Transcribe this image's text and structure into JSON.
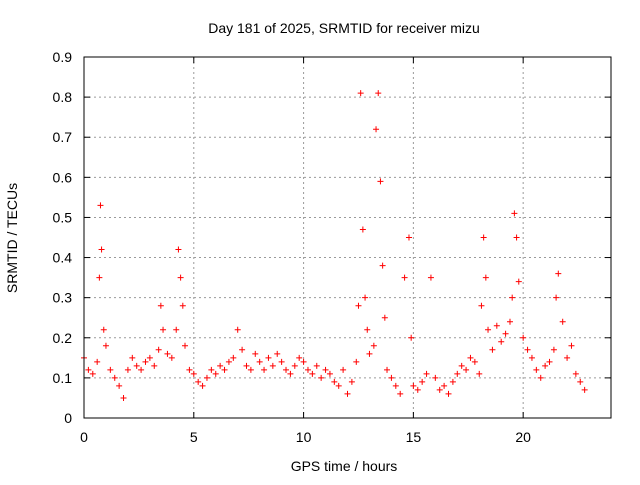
{
  "chart_data": {
    "type": "scatter",
    "title": "Day 181 of 2025, SRMTID for receiver mizu",
    "xlabel": "GPS time / hours",
    "ylabel": "SRMTID / TECUs",
    "xlim": [
      0,
      24
    ],
    "ylim": [
      0,
      0.9
    ],
    "x_ticks": [
      0,
      5,
      10,
      15,
      20
    ],
    "x_tick_labels": [
      "0",
      "5",
      "10",
      "15",
      "20"
    ],
    "y_ticks": [
      0,
      0.1,
      0.2,
      0.3,
      0.4,
      0.5,
      0.6,
      0.7,
      0.8,
      0.9
    ],
    "y_tick_labels": [
      "0",
      "0.1",
      "0.2",
      "0.3",
      "0.4",
      "0.5",
      "0.6",
      "0.7",
      "0.8",
      "0.9"
    ],
    "grid": true,
    "marker": "plus",
    "color": "#ff0000",
    "series": [
      {
        "name": "SRMTID",
        "x": [
          0.0,
          0.2,
          0.4,
          0.6,
          0.7,
          0.75,
          0.8,
          0.9,
          1.0,
          1.2,
          1.4,
          1.6,
          1.8,
          2.0,
          2.2,
          2.4,
          2.6,
          2.8,
          3.0,
          3.2,
          3.4,
          3.5,
          3.6,
          3.8,
          4.0,
          4.2,
          4.3,
          4.4,
          4.5,
          4.6,
          4.8,
          5.0,
          5.2,
          5.4,
          5.6,
          5.8,
          6.0,
          6.2,
          6.4,
          6.6,
          6.8,
          7.0,
          7.2,
          7.4,
          7.6,
          7.8,
          8.0,
          8.2,
          8.4,
          8.6,
          8.8,
          9.0,
          9.2,
          9.4,
          9.6,
          9.8,
          10.0,
          10.2,
          10.4,
          10.6,
          10.8,
          11.0,
          11.2,
          11.4,
          11.6,
          11.8,
          12.0,
          12.2,
          12.4,
          12.5,
          12.6,
          12.7,
          12.8,
          12.9,
          13.0,
          13.2,
          13.3,
          13.4,
          13.5,
          13.6,
          13.7,
          13.8,
          14.0,
          14.2,
          14.4,
          14.6,
          14.8,
          14.9,
          15.0,
          15.2,
          15.4,
          15.6,
          15.8,
          16.0,
          16.2,
          16.4,
          16.6,
          16.8,
          17.0,
          17.2,
          17.4,
          17.6,
          17.8,
          18.0,
          18.1,
          18.2,
          18.3,
          18.4,
          18.6,
          18.8,
          19.0,
          19.2,
          19.4,
          19.5,
          19.6,
          19.7,
          19.8,
          20.0,
          20.2,
          20.4,
          20.6,
          20.8,
          21.0,
          21.2,
          21.4,
          21.5,
          21.6,
          21.8,
          22.0,
          22.2,
          22.4,
          22.6,
          22.8
        ],
        "y": [
          0.15,
          0.12,
          0.11,
          0.14,
          0.35,
          0.53,
          0.42,
          0.22,
          0.18,
          0.12,
          0.1,
          0.08,
          0.05,
          0.12,
          0.15,
          0.13,
          0.12,
          0.14,
          0.15,
          0.13,
          0.17,
          0.28,
          0.22,
          0.16,
          0.15,
          0.22,
          0.42,
          0.35,
          0.28,
          0.18,
          0.12,
          0.11,
          0.09,
          0.08,
          0.1,
          0.12,
          0.11,
          0.13,
          0.12,
          0.14,
          0.15,
          0.22,
          0.17,
          0.13,
          0.12,
          0.16,
          0.14,
          0.12,
          0.15,
          0.13,
          0.16,
          0.14,
          0.12,
          0.11,
          0.13,
          0.15,
          0.14,
          0.12,
          0.11,
          0.13,
          0.1,
          0.12,
          0.11,
          0.09,
          0.08,
          0.12,
          0.06,
          0.09,
          0.14,
          0.28,
          0.81,
          0.47,
          0.3,
          0.22,
          0.16,
          0.18,
          0.72,
          0.81,
          0.59,
          0.38,
          0.25,
          0.12,
          0.1,
          0.08,
          0.06,
          0.35,
          0.45,
          0.2,
          0.08,
          0.07,
          0.09,
          0.11,
          0.35,
          0.1,
          0.07,
          0.08,
          0.06,
          0.09,
          0.11,
          0.13,
          0.12,
          0.15,
          0.14,
          0.11,
          0.28,
          0.45,
          0.35,
          0.22,
          0.17,
          0.23,
          0.19,
          0.21,
          0.24,
          0.3,
          0.51,
          0.45,
          0.34,
          0.2,
          0.17,
          0.15,
          0.12,
          0.1,
          0.13,
          0.14,
          0.17,
          0.3,
          0.36,
          0.24,
          0.15,
          0.18,
          0.11,
          0.09,
          0.07
        ]
      }
    ]
  }
}
